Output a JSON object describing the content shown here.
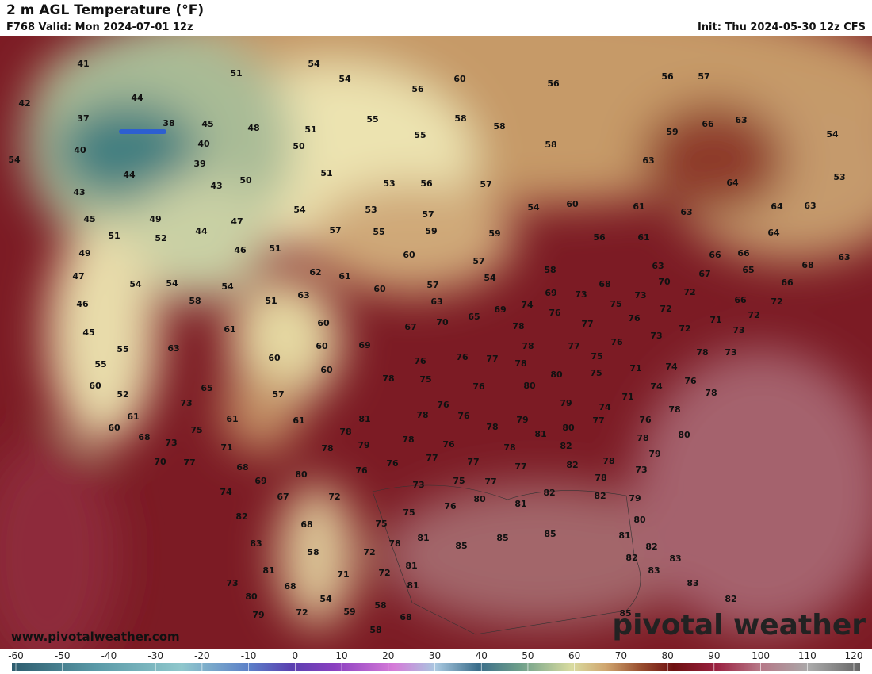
{
  "header": {
    "title": "2 m AGL Temperature (°F)",
    "valid": "F768 Valid: Mon 2024-07-01 12z",
    "init": "Init: Thu 2024-05-30 12z CFS"
  },
  "map": {
    "labels": [
      41,
      51,
      54,
      54,
      60,
      56,
      56,
      57,
      44,
      42,
      37,
      38,
      45,
      48,
      51,
      55,
      56,
      58,
      58,
      66,
      63,
      59,
      54,
      40,
      40,
      50,
      55,
      58,
      39,
      54,
      44,
      43,
      50,
      51,
      53,
      56,
      57,
      63,
      64,
      53,
      43,
      45,
      49,
      47,
      54,
      53,
      57,
      54,
      60,
      61,
      63,
      64,
      63,
      51,
      52,
      44,
      57,
      55,
      59,
      59,
      56,
      61,
      64,
      49,
      46,
      51,
      60,
      57,
      66,
      66,
      68,
      63,
      47,
      54,
      54,
      54,
      62,
      61,
      60,
      57,
      54,
      58,
      68,
      63,
      70,
      67,
      65,
      66,
      46,
      58,
      51,
      63,
      63,
      69,
      74,
      69,
      73,
      75,
      73,
      72,
      66,
      72,
      45,
      61,
      60,
      67,
      70,
      65,
      78,
      76,
      77,
      76,
      72,
      73,
      72,
      71,
      72,
      73,
      55,
      63,
      60,
      69,
      60,
      76,
      76,
      77,
      78,
      77,
      75,
      76,
      74,
      78,
      73,
      55,
      60,
      78,
      75,
      78,
      80,
      75,
      71,
      76,
      74,
      60,
      65,
      57,
      76,
      80,
      78,
      52,
      73,
      81,
      78,
      76,
      76,
      79,
      74,
      71,
      78,
      61,
      61,
      61,
      78,
      79,
      76,
      80,
      60,
      68,
      75,
      78,
      76,
      78,
      81,
      77,
      78,
      80,
      73,
      71,
      78,
      79,
      82,
      77,
      76,
      78,
      79,
      78,
      70,
      77,
      68,
      76,
      77,
      77,
      82,
      73,
      69,
      80,
      73,
      75,
      77,
      78,
      74,
      67,
      72,
      76,
      80,
      81,
      82,
      82,
      79,
      82,
      75,
      75,
      80,
      68,
      83,
      78,
      81,
      85,
      85,
      85,
      81,
      82,
      58,
      72,
      82,
      83,
      81,
      71,
      72,
      81,
      83,
      73,
      68,
      81,
      83,
      80,
      54,
      58,
      82,
      79,
      72,
      59,
      68,
      85,
      58
    ]
  },
  "footer": {
    "website": "www.pivotalweather.com",
    "logo": "pivotal weather"
  },
  "colorbar": {
    "ticks": [
      -60,
      -50,
      -40,
      -30,
      -20,
      -10,
      0,
      10,
      20,
      30,
      40,
      50,
      60,
      70,
      80,
      90,
      100,
      110,
      120
    ]
  }
}
